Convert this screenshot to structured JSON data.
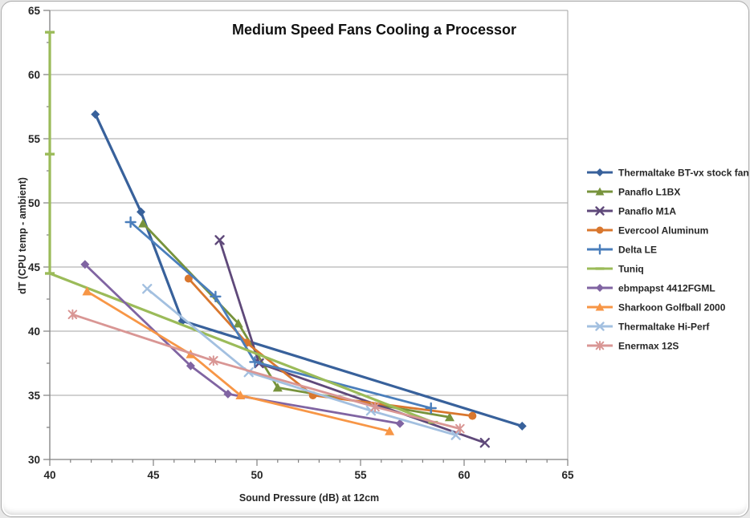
{
  "chart_data": {
    "type": "line",
    "title": "Medium Speed Fans Cooling a Processor",
    "xlabel": "Sound Pressure (dB) at 12cm",
    "ylabel": "dT (CPU temp - ambient)",
    "xlim": [
      40,
      65
    ],
    "ylim": [
      30,
      65
    ],
    "x_major_ticks": [
      40,
      45,
      50,
      55,
      60,
      65
    ],
    "x_minor_step": 1,
    "y_major_ticks": [
      30,
      35,
      40,
      45,
      50,
      55,
      60,
      65
    ],
    "y_minor_step": 2.5,
    "grid": "horizontal-plus-right-border",
    "legend_position": "right",
    "colors": {
      "background": "#ffffff",
      "frame_border": "#acacac",
      "grid": "#a3a3a3",
      "axis": "#808080",
      "text": "#262626",
      "title": "#111111"
    },
    "series": [
      {
        "name": "Thermaltake BT-vx stock fan",
        "color": "#38619b",
        "marker": "diamond",
        "width": 3.2,
        "points": [
          [
            42.2,
            56.9
          ],
          [
            44.4,
            49.3
          ],
          [
            46.4,
            40.8
          ],
          [
            62.8,
            32.6
          ]
        ]
      },
      {
        "name": "Panaflo L1BX",
        "color": "#77933c",
        "marker": "triangle",
        "width": 2.8,
        "points": [
          [
            44.5,
            48.4
          ],
          [
            49.1,
            40.6
          ],
          [
            51.0,
            35.6
          ],
          [
            59.3,
            33.3
          ]
        ]
      },
      {
        "name": "Panaflo M1A",
        "color": "#5f497a",
        "marker": "x",
        "width": 2.8,
        "points": [
          [
            48.2,
            47.1
          ],
          [
            50.1,
            37.5
          ],
          [
            61.0,
            31.3
          ]
        ]
      },
      {
        "name": "Evercool Aluminum",
        "color": "#d9772e",
        "marker": "circle",
        "width": 2.8,
        "points": [
          [
            46.7,
            44.1
          ],
          [
            49.5,
            39.1
          ],
          [
            52.7,
            35.0
          ],
          [
            60.4,
            33.4
          ]
        ]
      },
      {
        "name": "Delta LE",
        "color": "#4a7ebb",
        "marker": "plus",
        "width": 2.8,
        "points": [
          [
            43.9,
            48.5
          ],
          [
            48.0,
            42.7
          ],
          [
            49.9,
            37.6
          ],
          [
            58.4,
            34.0
          ]
        ]
      },
      {
        "name": "Tuniq",
        "color": "#9bbb59",
        "marker": "dash",
        "width": 3.2,
        "points": [
          [
            40.0,
            63.3
          ],
          [
            40.0,
            53.8
          ],
          [
            40.0,
            44.5
          ],
          [
            58.5,
            32.9
          ]
        ]
      },
      {
        "name": "ebmpapst 4412FGML",
        "color": "#8064a2",
        "marker": "diamond",
        "width": 2.8,
        "points": [
          [
            41.7,
            45.2
          ],
          [
            46.8,
            37.3
          ],
          [
            48.6,
            35.1
          ],
          [
            56.9,
            32.8
          ]
        ]
      },
      {
        "name": "Sharkoon Golfball 2000",
        "color": "#f79646",
        "marker": "triangle",
        "width": 2.8,
        "points": [
          [
            41.8,
            43.1
          ],
          [
            46.8,
            38.2
          ],
          [
            49.2,
            35.0
          ],
          [
            56.4,
            32.2
          ]
        ]
      },
      {
        "name": "Thermaltake Hi-Perf",
        "color": "#a3c0e0",
        "marker": "x",
        "width": 2.8,
        "points": [
          [
            44.7,
            43.3
          ],
          [
            49.6,
            36.8
          ],
          [
            55.5,
            33.8
          ],
          [
            59.6,
            31.9
          ]
        ]
      },
      {
        "name": "Enermax 12S",
        "color": "#d99694",
        "marker": "star",
        "width": 2.8,
        "points": [
          [
            41.1,
            41.3
          ],
          [
            47.9,
            37.7
          ],
          [
            55.7,
            34.1
          ],
          [
            59.8,
            32.4
          ]
        ]
      }
    ]
  }
}
